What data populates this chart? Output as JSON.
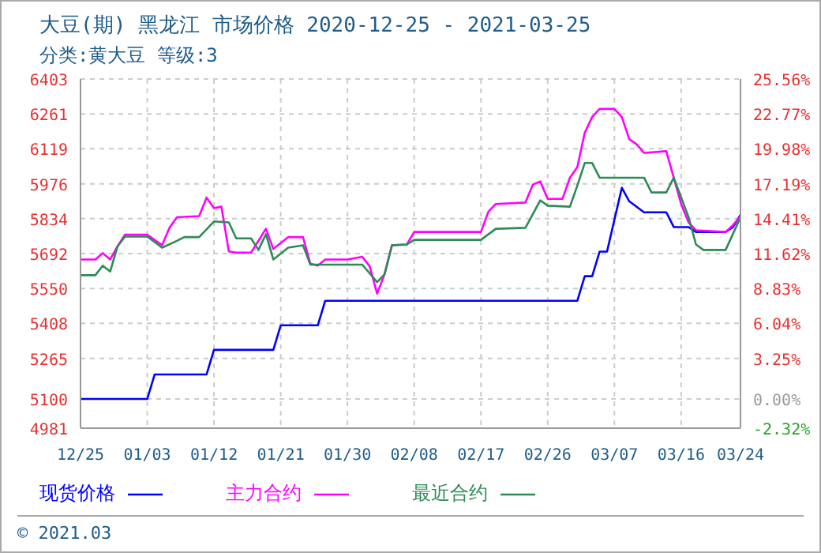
{
  "chart_data": {
    "type": "line",
    "title": "大豆(期) 黑龙江 市场价格 2020-12-25 - 2021-03-25",
    "subtitle": "分类:黄大豆 等级:3",
    "annotations": [
      "© 2021.03"
    ],
    "series": [
      {
        "name": "现货价格",
        "color": "#0000ff",
        "x": [
          "2020-12-25",
          "2021-01-03",
          "2021-01-04",
          "2021-01-11",
          "2021-01-12",
          "2021-01-20",
          "2021-01-21",
          "2021-01-26",
          "2021-01-27",
          "2021-03-02",
          "2021-03-03",
          "2021-03-04",
          "2021-03-05",
          "2021-03-06",
          "2021-03-08",
          "2021-03-09",
          "2021-03-11",
          "2021-03-14",
          "2021-03-15",
          "2021-03-17",
          "2021-03-18",
          "2021-03-22",
          "2021-03-23",
          "2021-03-24"
        ],
        "values": [
          5100,
          5100,
          5200,
          5200,
          5300,
          5300,
          5400,
          5400,
          5500,
          5500,
          5600,
          5600,
          5700,
          5700,
          5960,
          5905,
          5860,
          5860,
          5800,
          5800,
          5780,
          5780,
          5800,
          5850
        ]
      },
      {
        "name": "主力合约",
        "color": "#ff00ff",
        "x": [
          "2020-12-25",
          "2020-12-27",
          "2020-12-28",
          "2020-12-29",
          "2020-12-30",
          "2020-12-31",
          "2021-01-03",
          "2021-01-05",
          "2021-01-06",
          "2021-01-07",
          "2021-01-10",
          "2021-01-11",
          "2021-01-12",
          "2021-01-13",
          "2021-01-14",
          "2021-01-15",
          "2021-01-17",
          "2021-01-19",
          "2021-01-20",
          "2021-01-22",
          "2021-01-24",
          "2021-01-25",
          "2021-01-26",
          "2021-01-27",
          "2021-01-30",
          "2021-02-01",
          "2021-02-02",
          "2021-02-03",
          "2021-02-04",
          "2021-02-05",
          "2021-02-07",
          "2021-02-08",
          "2021-02-17",
          "2021-02-18",
          "2021-02-19",
          "2021-02-23",
          "2021-02-24",
          "2021-02-25",
          "2021-02-26",
          "2021-02-28",
          "2021-03-01",
          "2021-03-02",
          "2021-03-03",
          "2021-03-04",
          "2021-03-05",
          "2021-03-07",
          "2021-03-08",
          "2021-03-09",
          "2021-03-10",
          "2021-03-11",
          "2021-03-14",
          "2021-03-15",
          "2021-03-16",
          "2021-03-17",
          "2021-03-18",
          "2021-03-22",
          "2021-03-23",
          "2021-03-24"
        ],
        "values": [
          5668,
          5668,
          5694,
          5668,
          5722,
          5769,
          5769,
          5726,
          5797,
          5840,
          5845,
          5920,
          5877,
          5883,
          5701,
          5696,
          5696,
          5793,
          5711,
          5759,
          5759,
          5651,
          5643,
          5668,
          5668,
          5679,
          5640,
          5529,
          5608,
          5726,
          5729,
          5780,
          5780,
          5862,
          5894,
          5900,
          5973,
          5986,
          5915,
          5915,
          6001,
          6044,
          6184,
          6248,
          6281,
          6281,
          6248,
          6158,
          6137,
          6102,
          6109,
          6001,
          5894,
          5819,
          5787,
          5780,
          5808,
          5844
        ]
      },
      {
        "name": "最近合约",
        "color": "#2e8b57",
        "x": [
          "2020-12-25",
          "2020-12-27",
          "2020-12-28",
          "2020-12-29",
          "2020-12-30",
          "2020-12-31",
          "2021-01-03",
          "2021-01-05",
          "2021-01-07",
          "2021-01-08",
          "2021-01-10",
          "2021-01-12",
          "2021-01-14",
          "2021-01-15",
          "2021-01-17",
          "2021-01-18",
          "2021-01-19",
          "2021-01-20",
          "2021-01-22",
          "2021-01-24",
          "2021-01-25",
          "2021-02-01",
          "2021-02-03",
          "2021-02-04",
          "2021-02-05",
          "2021-02-07",
          "2021-02-08",
          "2021-02-17",
          "2021-02-19",
          "2021-02-23",
          "2021-02-25",
          "2021-02-26",
          "2021-03-01",
          "2021-03-02",
          "2021-03-03",
          "2021-03-04",
          "2021-03-05",
          "2021-03-11",
          "2021-03-12",
          "2021-03-14",
          "2021-03-15",
          "2021-03-17",
          "2021-03-18",
          "2021-03-19",
          "2021-03-22",
          "2021-03-24"
        ],
        "values": [
          5604,
          5604,
          5643,
          5619,
          5722,
          5761,
          5761,
          5716,
          5744,
          5759,
          5759,
          5823,
          5819,
          5754,
          5754,
          5707,
          5771,
          5668,
          5716,
          5726,
          5647,
          5647,
          5576,
          5608,
          5726,
          5729,
          5748,
          5748,
          5793,
          5797,
          5909,
          5887,
          5883,
          5969,
          6061,
          6061,
          6001,
          6001,
          5941,
          5941,
          6001,
          5840,
          5729,
          5707,
          5707,
          5840
        ]
      }
    ],
    "xlim": [
      "2020-12-25",
      "2021-03-24"
    ],
    "xticks": [
      {
        "value": "2020-12-25",
        "label": "12/25"
      },
      {
        "value": "2021-01-03",
        "label": "01/03"
      },
      {
        "value": "2021-01-12",
        "label": "01/12"
      },
      {
        "value": "2021-01-21",
        "label": "01/21"
      },
      {
        "value": "2021-01-30",
        "label": "01/30"
      },
      {
        "value": "2021-02-08",
        "label": "02/08"
      },
      {
        "value": "2021-02-17",
        "label": "02/17"
      },
      {
        "value": "2021-02-26",
        "label": "02/26"
      },
      {
        "value": "2021-03-07",
        "label": "03/07"
      },
      {
        "value": "2021-03-16",
        "label": "03/16"
      },
      {
        "value": "2021-03-24",
        "label": "03/24"
      }
    ],
    "ylim": [
      4981,
      6403
    ],
    "yticks": [
      4981,
      5100,
      5265,
      5408,
      5550,
      5692,
      5834,
      5976,
      6119,
      6261,
      6403
    ],
    "y2lim": [
      -2.32,
      25.56
    ],
    "y2ticks": [
      {
        "value": -2.32,
        "label": "-2.32%"
      },
      {
        "value": 0,
        "label": "0.00%"
      },
      {
        "value": 3.25,
        "label": "3.25%"
      },
      {
        "value": 6.04,
        "label": "6.04%"
      },
      {
        "value": 8.83,
        "label": "8.83%"
      },
      {
        "value": 11.62,
        "label": "11.62%"
      },
      {
        "value": 14.41,
        "label": "14.41%"
      },
      {
        "value": 17.19,
        "label": "17.19%"
      },
      {
        "value": 19.98,
        "label": "19.98%"
      },
      {
        "value": 22.77,
        "label": "22.77%"
      },
      {
        "value": 25.56,
        "label": "25.56%"
      }
    ],
    "grid": true,
    "legend": "bottom",
    "marker": "none",
    "line_style": "solid"
  }
}
